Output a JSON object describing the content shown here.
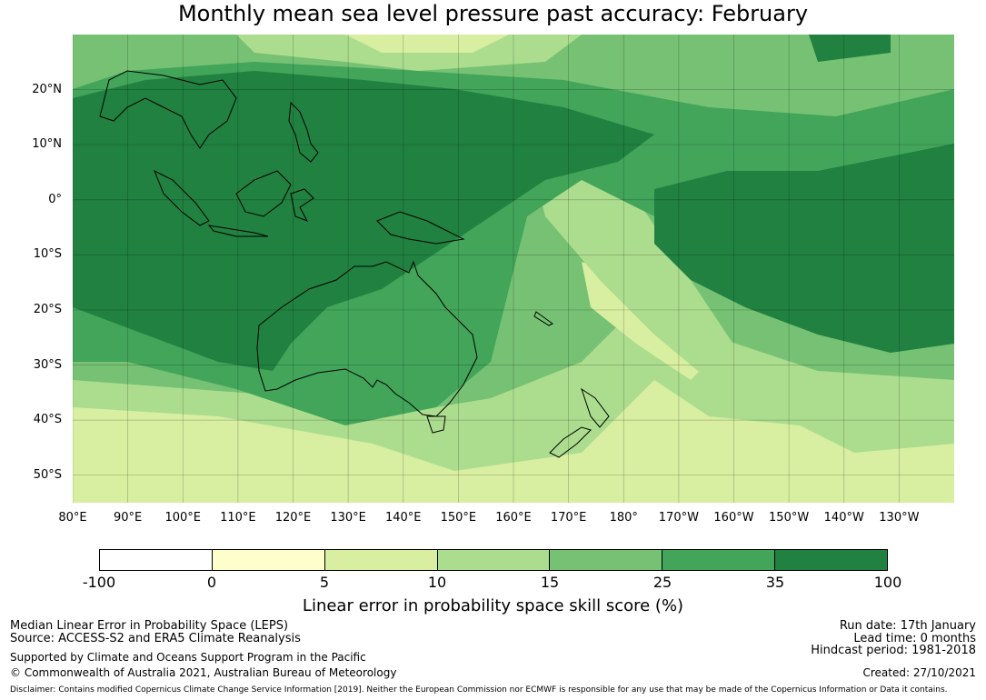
{
  "title": "Monthly mean sea level pressure past accuracy: February",
  "map": {
    "lat_labels": [
      "20°N",
      "10°N",
      "0°",
      "10°S",
      "20°S",
      "30°S",
      "40°S",
      "50°S"
    ],
    "lon_labels": [
      "80°E",
      "90°E",
      "100°E",
      "110°E",
      "120°E",
      "130°E",
      "140°E",
      "150°E",
      "160°E",
      "170°E",
      "180°",
      "170°W",
      "160°W",
      "150°W",
      "140°W",
      "130°W"
    ],
    "lat_range": [
      -55,
      30
    ],
    "lon_range": [
      80,
      240
    ]
  },
  "legend": {
    "ticks": [
      "-100",
      "0",
      "5",
      "10",
      "15",
      "25",
      "35",
      "100"
    ],
    "colors": [
      "#ffffff",
      "#fefdcc",
      "#d8eea1",
      "#acdd8e",
      "#76c174",
      "#42a55a",
      "#208141"
    ],
    "label": "Linear error in probability space skill score (%)"
  },
  "footer": {
    "left1": "Median Linear Error in Probability Space (LEPS)",
    "left2": "Source: ACCESS-S2 and ERA5 Climate Reanalysis",
    "left3": "Supported by Climate and Oceans Support Program in the Pacific",
    "left4": "© Commonwealth of Australia 2021, Australian Bureau of Meteorology",
    "right1": "Run date: 17th January",
    "right2": "Lead time: 0 months",
    "right3": "Hindcast period: 1981-2018",
    "right4": "Created: 27/10/2021",
    "disclaimer": "Disclaimer: Contains modified Copernicus Climate Change Service Information [2019]. Neither the European Commission nor ECMWF is responsible for any use that may be made of the Copernicus Information or Data it contains."
  }
}
